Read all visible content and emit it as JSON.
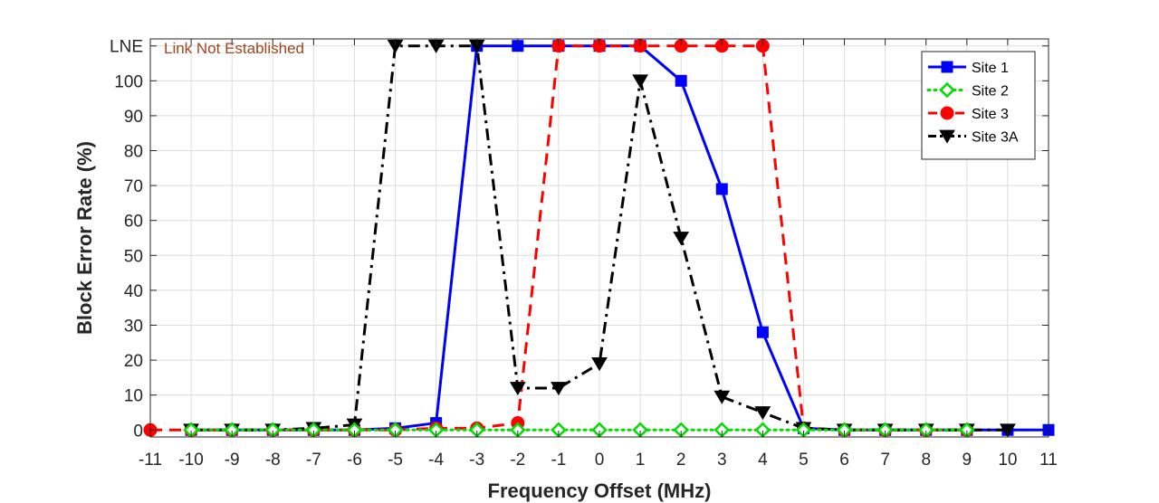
{
  "chart_data": {
    "type": "line",
    "xlabel": "Frequency Offset (MHz)",
    "ylabel": "Block Error Rate (%)",
    "x": [
      -11,
      -10,
      -9,
      -8,
      -7,
      -6,
      -5,
      -4,
      -3,
      -2,
      -1,
      0,
      1,
      2,
      3,
      4,
      5,
      6,
      7,
      8,
      9,
      10,
      11
    ],
    "xlim": [
      -11,
      11
    ],
    "ylim": [
      -2,
      112
    ],
    "y_ticks": [
      0,
      10,
      20,
      30,
      40,
      50,
      60,
      70,
      80,
      90,
      100,
      110
    ],
    "y_tick_labels": [
      "0",
      "10",
      "20",
      "30",
      "40",
      "50",
      "60",
      "70",
      "80",
      "90",
      "100",
      "LNE"
    ],
    "lne_value": 110,
    "annotation": "Link Not Established",
    "grid": true,
    "legend_position": "top-right",
    "series": [
      {
        "name": "Site 1",
        "color": "#0000ff",
        "line_style": "solid",
        "marker": "square",
        "x": [
          -10,
          -9,
          -8,
          -7,
          -6,
          -5,
          -4,
          -3,
          -2,
          -1,
          0,
          1,
          2,
          3,
          4,
          5,
          6,
          7,
          8,
          9,
          10,
          11
        ],
        "values": [
          0,
          0,
          0,
          0,
          0,
          0.5,
          2,
          110,
          110,
          110,
          110,
          110,
          100,
          69,
          28,
          0.5,
          0,
          0,
          0,
          0,
          0,
          0
        ]
      },
      {
        "name": "Site 2",
        "color": "#00dd00",
        "line_style": "dotted",
        "marker": "diamond",
        "x": [
          -10,
          -9,
          -8,
          -7,
          -6,
          -5,
          -4,
          -3,
          -2,
          -1,
          0,
          1,
          2,
          3,
          4,
          5,
          6,
          7,
          8,
          9
        ],
        "values": [
          0,
          0,
          0,
          0,
          0,
          0,
          0,
          0,
          0,
          0,
          0,
          0,
          0,
          0,
          0,
          0,
          0,
          0,
          0,
          0
        ]
      },
      {
        "name": "Site 3",
        "color": "#ff0000",
        "line_style": "dashed",
        "marker": "circle",
        "x": [
          -11,
          -10,
          -9,
          -8,
          -7,
          -6,
          -5,
          -4,
          -3,
          -2,
          -1,
          0,
          1,
          2,
          3,
          4,
          5,
          6,
          7,
          8,
          9
        ],
        "values": [
          0,
          0,
          0,
          0,
          0,
          0,
          0,
          0.5,
          0.5,
          2,
          110,
          110,
          110,
          110,
          110,
          110,
          0.5,
          0,
          0,
          0,
          0
        ]
      },
      {
        "name": "Site 3A",
        "color": "#000000",
        "line_style": "dashdot",
        "marker": "triangle-down",
        "x": [
          -10,
          -9,
          -8,
          -7,
          -6,
          -5,
          -4,
          -3,
          -2,
          -1,
          0,
          1,
          2,
          3,
          4,
          5,
          6,
          7,
          8,
          9,
          10
        ],
        "values": [
          0,
          0,
          0,
          0.5,
          1.5,
          110,
          110,
          110,
          12,
          12,
          19,
          100,
          55,
          9.5,
          5,
          0.5,
          0,
          0,
          0,
          0,
          0
        ]
      }
    ]
  }
}
